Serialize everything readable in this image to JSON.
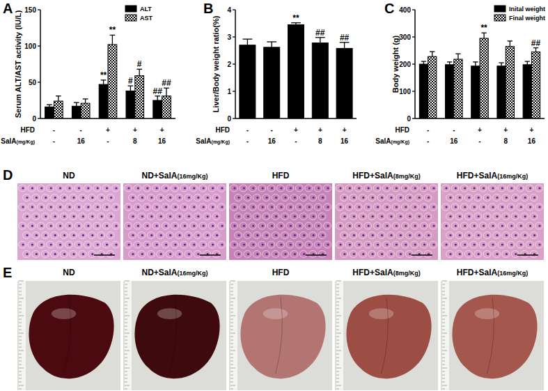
{
  "chart_data": [
    {
      "type": "bar",
      "title": "A",
      "y_label": "Serum ALT/AST activity (IU/L)",
      "ylim": [
        0,
        150
      ],
      "yticks": [
        0,
        50,
        100,
        150
      ],
      "legend": "top-right",
      "x_rows": [
        {
          "label": "HFD",
          "values": [
            "-",
            "-",
            "+",
            "+",
            "+"
          ]
        },
        {
          "label": "SalA(mg/Kg)",
          "values": [
            "-",
            "16",
            "-",
            "8",
            "16"
          ]
        }
      ],
      "series": [
        {
          "name": "ALT",
          "color": "#000000",
          "values": [
            16,
            17,
            47,
            38,
            25
          ],
          "errors": [
            3,
            5,
            6,
            7,
            6
          ],
          "annotations": [
            null,
            null,
            "**",
            "#",
            "##"
          ]
        },
        {
          "name": "AST",
          "color": "#000000",
          "values": [
            24,
            21,
            102,
            59,
            31
          ],
          "errors": [
            7,
            6,
            13,
            9,
            11
          ],
          "annotations": [
            null,
            null,
            "**",
            "#",
            "##"
          ]
        }
      ]
    },
    {
      "type": "bar",
      "title": "B",
      "y_label": "Liver/Body weight ratio(%)",
      "ylim": [
        0,
        4
      ],
      "yticks": [
        0,
        1,
        2,
        3,
        4
      ],
      "x_rows": [
        {
          "label": "HFD",
          "values": [
            "-",
            "-",
            "+",
            "+",
            "+"
          ]
        },
        {
          "label": "SalA(mg/Kg)",
          "values": [
            "-",
            "16",
            "-",
            "8",
            "16"
          ]
        }
      ],
      "series": [
        {
          "color": "#000000",
          "values": [
            2.7,
            2.62,
            3.45,
            2.78,
            2.58
          ],
          "errors": [
            0.22,
            0.2,
            0.07,
            0.2,
            0.22
          ],
          "annotations": [
            null,
            null,
            "**",
            "##",
            "##"
          ]
        }
      ]
    },
    {
      "type": "bar",
      "title": "C",
      "y_label": "Body weight (g)",
      "ylim": [
        0,
        400
      ],
      "yticks": [
        0,
        100,
        200,
        300,
        400
      ],
      "legend": "top-right",
      "x_rows": [
        {
          "label": "HFD",
          "values": [
            "-",
            "-",
            "+",
            "+",
            "+"
          ]
        },
        {
          "label": "SalA(mg/Kg)",
          "values": [
            "-",
            "16",
            "-",
            "8",
            "16"
          ]
        }
      ],
      "series": [
        {
          "name": "Inital weight",
          "color": "#000000",
          "values": [
            200,
            198,
            193,
            193,
            198
          ],
          "errors": [
            10,
            10,
            15,
            12,
            12
          ],
          "annotations": [
            null,
            null,
            null,
            null,
            null
          ]
        },
        {
          "name": "Final weight",
          "color": "#000000",
          "values": [
            228,
            218,
            295,
            265,
            245
          ],
          "errors": [
            18,
            20,
            20,
            20,
            15
          ],
          "annotations": [
            null,
            null,
            "**",
            null,
            "##"
          ]
        }
      ]
    }
  ],
  "image_panels": [
    {
      "title": "D",
      "images": [
        {
          "label": "ND",
          "color": "#dca6d3"
        },
        {
          "label": "ND+SalA(16mg/Kg)",
          "color": "#d79ccb"
        },
        {
          "label": "HFD",
          "color": "#c783b8"
        },
        {
          "label": "HFD+SalA(8mg/Kg)",
          "color": "#d69bc2"
        },
        {
          "label": "HFD+SalA(16mg/Kg)",
          "color": "#d9a1c7"
        }
      ]
    },
    {
      "title": "E",
      "images": [
        {
          "label": "ND",
          "color": "#4a0a10"
        },
        {
          "label": "ND+SalA(16mg/Kg)",
          "color": "#3e0a0d"
        },
        {
          "label": "HFD",
          "color": "#b27571"
        },
        {
          "label": "HFD+SalA(8mg/Kg)",
          "color": "#9c4d44"
        },
        {
          "label": "HFD+SalA(16mg/Kg)",
          "color": "#a4574d"
        }
      ]
    }
  ]
}
